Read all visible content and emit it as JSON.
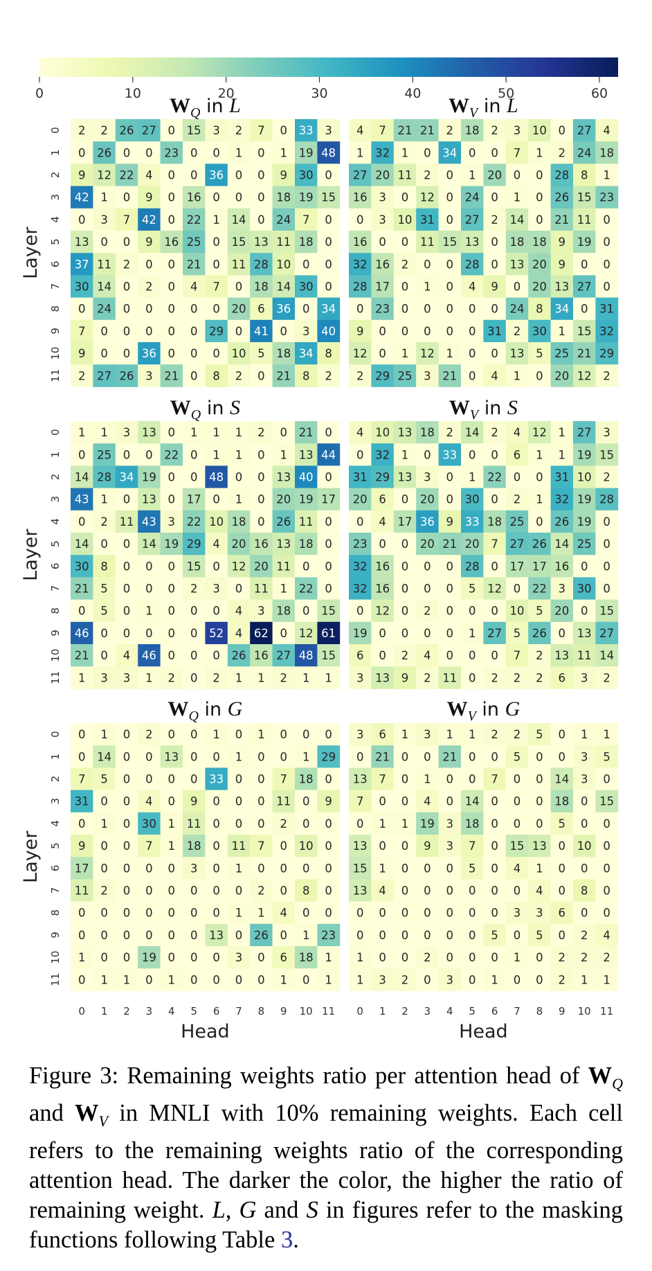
{
  "chart_data": {
    "type": "heatmap",
    "colorbar": {
      "ticks": [
        0,
        10,
        20,
        30,
        40,
        50,
        60
      ],
      "range": [
        0,
        62
      ],
      "palette": [
        "#ffffd9",
        "#edf8b1",
        "#c7e9b4",
        "#7fcdbb",
        "#41b6c4",
        "#1d91c0",
        "#225ea8",
        "#253494",
        "#081d58"
      ]
    },
    "x_ticks": [
      "0",
      "1",
      "2",
      "3",
      "4",
      "5",
      "6",
      "7",
      "8",
      "9",
      "10",
      "11"
    ],
    "y_ticks": [
      "0",
      "1",
      "2",
      "3",
      "4",
      "5",
      "6",
      "7",
      "8",
      "9",
      "10",
      "11"
    ],
    "xlabel": "Head",
    "ylabel": "Layer",
    "panels": [
      {
        "matrix": "W",
        "sub": "Q",
        "fn": "L",
        "values": [
          [
            2,
            2,
            26,
            27,
            0,
            15,
            3,
            2,
            7,
            0,
            33,
            3
          ],
          [
            0,
            26,
            0,
            0,
            23,
            0,
            0,
            1,
            0,
            1,
            19,
            48
          ],
          [
            9,
            12,
            22,
            4,
            0,
            0,
            36,
            0,
            0,
            9,
            30,
            0
          ],
          [
            42,
            1,
            0,
            9,
            0,
            16,
            0,
            0,
            0,
            18,
            19,
            15
          ],
          [
            0,
            3,
            7,
            42,
            0,
            22,
            1,
            14,
            0,
            24,
            7,
            0
          ],
          [
            13,
            0,
            0,
            9,
            16,
            25,
            0,
            15,
            13,
            11,
            18,
            0
          ],
          [
            37,
            11,
            2,
            0,
            0,
            21,
            0,
            11,
            28,
            10,
            0,
            0
          ],
          [
            30,
            14,
            0,
            2,
            0,
            4,
            7,
            0,
            18,
            14,
            30,
            0
          ],
          [
            0,
            24,
            0,
            0,
            0,
            0,
            0,
            20,
            6,
            36,
            0,
            34
          ],
          [
            7,
            0,
            0,
            0,
            0,
            0,
            29,
            0,
            41,
            0,
            3,
            40
          ],
          [
            9,
            0,
            0,
            36,
            0,
            0,
            0,
            10,
            5,
            18,
            34,
            8
          ],
          [
            2,
            27,
            26,
            3,
            21,
            0,
            8,
            2,
            0,
            21,
            8,
            2
          ]
        ]
      },
      {
        "matrix": "W",
        "sub": "V",
        "fn": "L",
        "values": [
          [
            4,
            7,
            21,
            21,
            2,
            18,
            2,
            3,
            10,
            0,
            27,
            4
          ],
          [
            1,
            32,
            1,
            0,
            34,
            0,
            0,
            7,
            1,
            2,
            24,
            18
          ],
          [
            27,
            20,
            11,
            2,
            0,
            1,
            20,
            0,
            0,
            28,
            8,
            1
          ],
          [
            16,
            3,
            0,
            12,
            0,
            24,
            0,
            1,
            0,
            26,
            15,
            23
          ],
          [
            0,
            3,
            10,
            31,
            0,
            27,
            2,
            14,
            0,
            21,
            11,
            0
          ],
          [
            16,
            0,
            0,
            11,
            15,
            13,
            0,
            18,
            18,
            9,
            19,
            0
          ],
          [
            32,
            16,
            2,
            0,
            0,
            28,
            0,
            13,
            20,
            9,
            0,
            0
          ],
          [
            28,
            17,
            0,
            1,
            0,
            4,
            9,
            0,
            20,
            13,
            27,
            0
          ],
          [
            0,
            23,
            0,
            0,
            0,
            0,
            0,
            24,
            8,
            34,
            0,
            31
          ],
          [
            9,
            0,
            0,
            0,
            0,
            0,
            31,
            2,
            30,
            1,
            15,
            32
          ],
          [
            12,
            0,
            1,
            12,
            1,
            0,
            0,
            13,
            5,
            25,
            21,
            29
          ],
          [
            2,
            29,
            25,
            3,
            21,
            0,
            4,
            1,
            0,
            20,
            12,
            2
          ]
        ]
      },
      {
        "matrix": "W",
        "sub": "Q",
        "fn": "S",
        "values": [
          [
            1,
            1,
            3,
            13,
            0,
            1,
            1,
            1,
            2,
            0,
            21,
            0
          ],
          [
            0,
            25,
            0,
            0,
            22,
            0,
            1,
            1,
            0,
            1,
            13,
            44
          ],
          [
            14,
            28,
            34,
            19,
            0,
            0,
            48,
            0,
            0,
            13,
            40,
            0
          ],
          [
            43,
            1,
            0,
            13,
            0,
            17,
            0,
            1,
            0,
            20,
            19,
            17
          ],
          [
            0,
            2,
            11,
            43,
            3,
            22,
            10,
            18,
            0,
            26,
            11,
            0
          ],
          [
            14,
            0,
            0,
            14,
            19,
            29,
            4,
            20,
            16,
            13,
            18,
            0
          ],
          [
            30,
            8,
            0,
            0,
            0,
            15,
            0,
            12,
            20,
            11,
            0,
            0
          ],
          [
            21,
            5,
            0,
            0,
            0,
            2,
            3,
            0,
            11,
            1,
            22,
            0
          ],
          [
            0,
            5,
            0,
            1,
            0,
            0,
            0,
            4,
            3,
            18,
            0,
            15
          ],
          [
            46,
            0,
            0,
            0,
            0,
            0,
            52,
            4,
            62,
            0,
            12,
            61
          ],
          [
            21,
            0,
            4,
            46,
            0,
            0,
            0,
            26,
            16,
            27,
            48,
            15
          ],
          [
            1,
            3,
            3,
            1,
            2,
            0,
            2,
            1,
            1,
            2,
            1,
            1
          ]
        ]
      },
      {
        "matrix": "W",
        "sub": "V",
        "fn": "S",
        "values": [
          [
            4,
            10,
            13,
            18,
            2,
            14,
            2,
            4,
            12,
            1,
            27,
            3
          ],
          [
            0,
            32,
            1,
            0,
            33,
            0,
            0,
            6,
            1,
            1,
            19,
            15
          ],
          [
            31,
            29,
            13,
            3,
            0,
            1,
            22,
            0,
            0,
            31,
            10,
            2
          ],
          [
            20,
            6,
            0,
            20,
            0,
            30,
            0,
            2,
            1,
            32,
            19,
            28
          ],
          [
            0,
            4,
            17,
            36,
            9,
            33,
            18,
            25,
            0,
            26,
            19,
            0
          ],
          [
            23,
            0,
            0,
            20,
            21,
            20,
            7,
            27,
            26,
            14,
            25,
            0
          ],
          [
            32,
            16,
            0,
            0,
            0,
            28,
            0,
            17,
            17,
            16,
            0,
            0
          ],
          [
            32,
            16,
            0,
            0,
            0,
            5,
            12,
            0,
            22,
            3,
            30,
            0
          ],
          [
            0,
            12,
            0,
            2,
            0,
            0,
            0,
            10,
            5,
            20,
            0,
            15
          ],
          [
            19,
            0,
            0,
            0,
            0,
            1,
            27,
            5,
            26,
            0,
            13,
            27
          ],
          [
            6,
            0,
            2,
            4,
            0,
            0,
            0,
            7,
            2,
            13,
            11,
            14
          ],
          [
            3,
            13,
            9,
            2,
            11,
            0,
            2,
            2,
            2,
            6,
            3,
            2
          ]
        ]
      },
      {
        "matrix": "W",
        "sub": "Q",
        "fn": "G",
        "values": [
          [
            0,
            1,
            0,
            2,
            0,
            0,
            1,
            0,
            1,
            0,
            0,
            0
          ],
          [
            0,
            14,
            0,
            0,
            13,
            0,
            0,
            1,
            0,
            0,
            1,
            29
          ],
          [
            7,
            5,
            0,
            0,
            0,
            0,
            33,
            0,
            0,
            7,
            18,
            0
          ],
          [
            31,
            0,
            0,
            4,
            0,
            9,
            0,
            0,
            0,
            11,
            0,
            9
          ],
          [
            0,
            1,
            0,
            30,
            1,
            11,
            0,
            0,
            0,
            2,
            0,
            0
          ],
          [
            9,
            0,
            0,
            7,
            1,
            18,
            0,
            11,
            7,
            0,
            10,
            0
          ],
          [
            17,
            0,
            0,
            0,
            0,
            3,
            0,
            1,
            0,
            0,
            0,
            0
          ],
          [
            11,
            2,
            0,
            0,
            0,
            0,
            0,
            0,
            2,
            0,
            8,
            0
          ],
          [
            0,
            0,
            0,
            0,
            0,
            0,
            0,
            1,
            1,
            4,
            0,
            0
          ],
          [
            0,
            0,
            0,
            0,
            0,
            0,
            13,
            0,
            26,
            0,
            1,
            23
          ],
          [
            1,
            0,
            0,
            19,
            0,
            0,
            0,
            3,
            0,
            6,
            18,
            1
          ],
          [
            0,
            1,
            1,
            0,
            1,
            0,
            0,
            0,
            0,
            1,
            0,
            1
          ]
        ]
      },
      {
        "matrix": "W",
        "sub": "V",
        "fn": "G",
        "values": [
          [
            3,
            6,
            1,
            3,
            1,
            1,
            2,
            2,
            5,
            0,
            1,
            1
          ],
          [
            0,
            21,
            0,
            0,
            21,
            0,
            0,
            5,
            0,
            0,
            3,
            5
          ],
          [
            13,
            7,
            0,
            1,
            0,
            0,
            7,
            0,
            0,
            14,
            3,
            0
          ],
          [
            7,
            0,
            0,
            4,
            0,
            14,
            0,
            0,
            0,
            18,
            0,
            15
          ],
          [
            0,
            1,
            1,
            19,
            3,
            18,
            0,
            0,
            0,
            5,
            0,
            0
          ],
          [
            13,
            0,
            0,
            9,
            3,
            7,
            0,
            15,
            13,
            0,
            10,
            0
          ],
          [
            15,
            1,
            0,
            0,
            0,
            5,
            0,
            4,
            1,
            0,
            0,
            0
          ],
          [
            13,
            4,
            0,
            0,
            0,
            0,
            0,
            0,
            4,
            0,
            8,
            0
          ],
          [
            0,
            0,
            0,
            0,
            0,
            0,
            0,
            3,
            3,
            6,
            0,
            0
          ],
          [
            0,
            0,
            0,
            0,
            0,
            0,
            5,
            0,
            5,
            0,
            2,
            4
          ],
          [
            1,
            0,
            0,
            2,
            0,
            0,
            0,
            1,
            0,
            2,
            2,
            2
          ],
          [
            1,
            3,
            2,
            0,
            3,
            0,
            1,
            0,
            0,
            2,
            1,
            1
          ]
        ]
      }
    ]
  },
  "caption": {
    "label": "Figure 3:",
    "text": "Remaining weights ratio per attention head of W_Q and W_V in MNLI with 10% remaining weights. Each cell refers to the remaining weights ratio of the corresponding attention head. The darker the color, the higher the ratio of remaining weight. L, G and S in figures refer to the masking functions following Table 3."
  }
}
